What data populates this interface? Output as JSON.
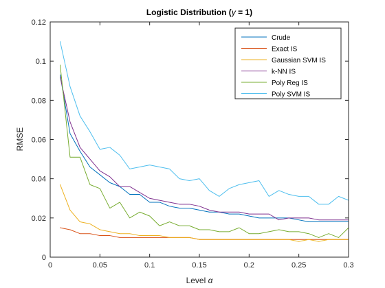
{
  "chart_data": {
    "type": "line",
    "title_prefix": "Logistic Distribution  (",
    "title_symbol": "γ",
    "title_suffix": " = 1)",
    "xlabel_text": "Level ",
    "xlabel_symbol": "α",
    "ylabel": "RMSE",
    "xlim": [
      0,
      0.3
    ],
    "ylim": [
      0,
      0.12
    ],
    "grid": false,
    "legend_position": "top-right",
    "x_ticks": [
      {
        "value": 0,
        "label": "0"
      },
      {
        "value": 0.05,
        "label": "0.05"
      },
      {
        "value": 0.1,
        "label": "0.1"
      },
      {
        "value": 0.15,
        "label": "0.15"
      },
      {
        "value": 0.2,
        "label": "0.2"
      },
      {
        "value": 0.25,
        "label": "0.25"
      },
      {
        "value": 0.3,
        "label": "0.3"
      }
    ],
    "y_ticks": [
      {
        "value": 0,
        "label": "0"
      },
      {
        "value": 0.02,
        "label": "0.02"
      },
      {
        "value": 0.04,
        "label": "0.04"
      },
      {
        "value": 0.06,
        "label": "0.06"
      },
      {
        "value": 0.08,
        "label": "0.08"
      },
      {
        "value": 0.1,
        "label": "0.1"
      },
      {
        "value": 0.12,
        "label": "0.12"
      }
    ],
    "x": [
      0.01,
      0.02,
      0.03,
      0.04,
      0.05,
      0.06,
      0.07,
      0.08,
      0.09,
      0.1,
      0.11,
      0.12,
      0.13,
      0.14,
      0.15,
      0.16,
      0.17,
      0.18,
      0.19,
      0.2,
      0.21,
      0.22,
      0.23,
      0.24,
      0.25,
      0.26,
      0.27,
      0.28,
      0.29,
      0.3
    ],
    "series": [
      {
        "name": "Crude",
        "color": "#0072BD",
        "values": [
          0.093,
          0.063,
          0.054,
          0.046,
          0.042,
          0.038,
          0.036,
          0.032,
          0.032,
          0.028,
          0.028,
          0.026,
          0.025,
          0.025,
          0.024,
          0.023,
          0.023,
          0.022,
          0.022,
          0.021,
          0.02,
          0.02,
          0.02,
          0.02,
          0.019,
          0.018,
          0.018,
          0.018,
          0.018,
          0.018
        ]
      },
      {
        "name": "Exact IS",
        "color": "#D95319",
        "values": [
          0.015,
          0.014,
          0.012,
          0.012,
          0.011,
          0.011,
          0.01,
          0.01,
          0.01,
          0.01,
          0.01,
          0.01,
          0.01,
          0.01,
          0.009,
          0.009,
          0.009,
          0.009,
          0.009,
          0.009,
          0.009,
          0.009,
          0.009,
          0.009,
          0.009,
          0.009,
          0.009,
          0.009,
          0.009,
          0.009
        ]
      },
      {
        "name": "Gaussian SVM IS",
        "color": "#EDB120",
        "values": [
          0.037,
          0.024,
          0.018,
          0.017,
          0.014,
          0.013,
          0.012,
          0.012,
          0.011,
          0.011,
          0.011,
          0.01,
          0.01,
          0.01,
          0.009,
          0.009,
          0.009,
          0.009,
          0.009,
          0.009,
          0.009,
          0.009,
          0.009,
          0.009,
          0.008,
          0.009,
          0.008,
          0.009,
          0.009,
          0.009
        ]
      },
      {
        "name": "k-NN IS",
        "color": "#7E2F8E",
        "values": [
          0.092,
          0.069,
          0.056,
          0.05,
          0.044,
          0.041,
          0.036,
          0.036,
          0.033,
          0.03,
          0.029,
          0.028,
          0.027,
          0.027,
          0.026,
          0.024,
          0.023,
          0.023,
          0.023,
          0.022,
          0.022,
          0.022,
          0.019,
          0.02,
          0.02,
          0.02,
          0.019,
          0.019,
          0.019,
          0.019
        ]
      },
      {
        "name": "Poly Reg IS",
        "color": "#77AC30",
        "values": [
          0.098,
          0.051,
          0.051,
          0.037,
          0.035,
          0.025,
          0.028,
          0.02,
          0.023,
          0.021,
          0.016,
          0.018,
          0.016,
          0.016,
          0.014,
          0.014,
          0.013,
          0.013,
          0.015,
          0.012,
          0.012,
          0.013,
          0.014,
          0.013,
          0.013,
          0.012,
          0.01,
          0.012,
          0.01,
          0.015
        ]
      },
      {
        "name": "Poly SVM IS",
        "color": "#4DBEEE",
        "values": [
          0.11,
          0.087,
          0.072,
          0.064,
          0.055,
          0.056,
          0.052,
          0.045,
          0.046,
          0.047,
          0.046,
          0.045,
          0.04,
          0.039,
          0.04,
          0.034,
          0.031,
          0.035,
          0.037,
          0.038,
          0.039,
          0.031,
          0.034,
          0.032,
          0.031,
          0.031,
          0.027,
          0.027,
          0.031,
          0.029
        ]
      }
    ]
  }
}
